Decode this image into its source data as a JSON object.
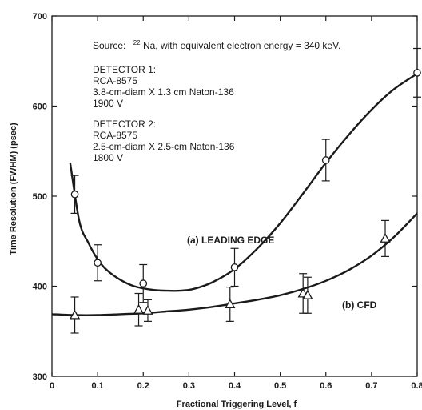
{
  "chart_data": {
    "type": "scatter",
    "xlabel": "Fractional Triggering Level, f",
    "ylabel": "Time Resolution (FWHM) (psec)",
    "xlim": [
      0,
      0.8
    ],
    "ylim": [
      300,
      700
    ],
    "x_ticks": [
      0,
      0.1,
      0.2,
      0.3,
      0.4,
      0.5,
      0.6,
      0.7,
      0.8
    ],
    "x_tick_labels": [
      "0",
      "0.1",
      "0.2",
      "0.3",
      "0.4",
      "0.5",
      "0.6",
      "0.7",
      "0.8"
    ],
    "y_ticks": [
      300,
      400,
      500,
      600,
      700
    ],
    "y_tick_labels": [
      "300",
      "400",
      "500",
      "600",
      "700"
    ],
    "grid": false,
    "annotations": {
      "source_prefix": "Source:",
      "source_superscript": "22",
      "source_rest": "Na, with equivalent electron energy = 340 keV.",
      "detector1": [
        "DETECTOR 1:",
        "RCA-8575",
        "3.8-cm-diam X 1.3 cm Naton-136",
        "1900 V"
      ],
      "detector2": [
        "DETECTOR 2:",
        "RCA-8575",
        "2.5-cm-diam X 2.5-cm Naton-136",
        "1800 V"
      ]
    },
    "series": [
      {
        "name": "(a) LEADING EDGE",
        "marker": "circle",
        "points": [
          {
            "x": 0.05,
            "y": 502,
            "err": 21
          },
          {
            "x": 0.1,
            "y": 426,
            "err": 20
          },
          {
            "x": 0.2,
            "y": 403,
            "err": 21
          },
          {
            "x": 0.4,
            "y": 421,
            "err": 21
          },
          {
            "x": 0.6,
            "y": 540,
            "err": 23
          },
          {
            "x": 0.8,
            "y": 637,
            "err": 27
          }
        ],
        "curve": [
          {
            "x": 0.04,
            "y": 537
          },
          {
            "x": 0.06,
            "y": 472
          },
          {
            "x": 0.08,
            "y": 448
          },
          {
            "x": 0.1,
            "y": 430
          },
          {
            "x": 0.12,
            "y": 418
          },
          {
            "x": 0.15,
            "y": 407
          },
          {
            "x": 0.18,
            "y": 400
          },
          {
            "x": 0.22,
            "y": 396
          },
          {
            "x": 0.25,
            "y": 395
          },
          {
            "x": 0.28,
            "y": 395
          },
          {
            "x": 0.31,
            "y": 397
          },
          {
            "x": 0.35,
            "y": 404
          },
          {
            "x": 0.4,
            "y": 419
          },
          {
            "x": 0.45,
            "y": 442
          },
          {
            "x": 0.5,
            "y": 470
          },
          {
            "x": 0.55,
            "y": 503
          },
          {
            "x": 0.6,
            "y": 537
          },
          {
            "x": 0.65,
            "y": 568
          },
          {
            "x": 0.7,
            "y": 596
          },
          {
            "x": 0.75,
            "y": 619
          },
          {
            "x": 0.8,
            "y": 636
          }
        ]
      },
      {
        "name": "(b) CFD",
        "marker": "triangle",
        "points": [
          {
            "x": 0.05,
            "y": 368,
            "err": 20
          },
          {
            "x": 0.19,
            "y": 374,
            "err": 18
          },
          {
            "x": 0.21,
            "y": 373,
            "err": 12
          },
          {
            "x": 0.39,
            "y": 380,
            "err": 19
          },
          {
            "x": 0.55,
            "y": 392,
            "err": 22
          },
          {
            "x": 0.56,
            "y": 390,
            "err": 20
          },
          {
            "x": 0.73,
            "y": 453,
            "err": 20
          }
        ],
        "curve": [
          {
            "x": 0.0,
            "y": 369
          },
          {
            "x": 0.05,
            "y": 368
          },
          {
            "x": 0.1,
            "y": 368
          },
          {
            "x": 0.15,
            "y": 369
          },
          {
            "x": 0.2,
            "y": 370
          },
          {
            "x": 0.25,
            "y": 372
          },
          {
            "x": 0.3,
            "y": 374
          },
          {
            "x": 0.35,
            "y": 377
          },
          {
            "x": 0.4,
            "y": 381
          },
          {
            "x": 0.45,
            "y": 385
          },
          {
            "x": 0.5,
            "y": 390
          },
          {
            "x": 0.55,
            "y": 397
          },
          {
            "x": 0.6,
            "y": 406
          },
          {
            "x": 0.65,
            "y": 418
          },
          {
            "x": 0.7,
            "y": 434
          },
          {
            "x": 0.75,
            "y": 455
          },
          {
            "x": 0.8,
            "y": 481
          }
        ]
      }
    ]
  }
}
